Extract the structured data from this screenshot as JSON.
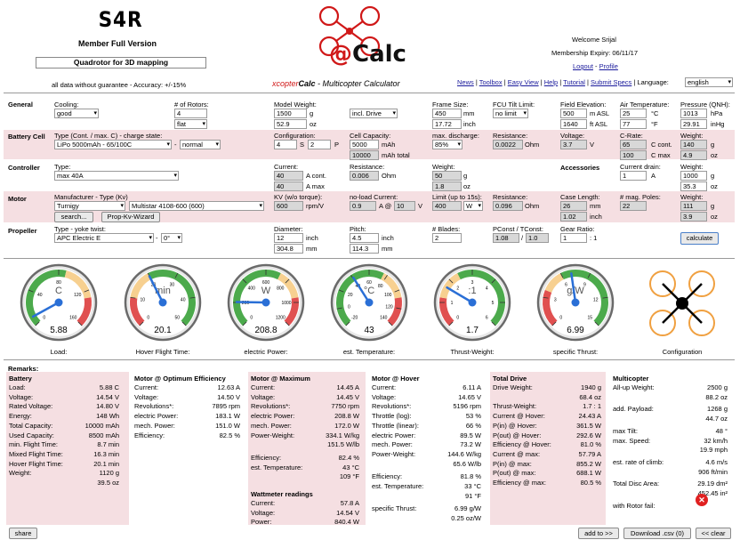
{
  "header": {
    "logo_text": "S4R",
    "member_label": "Member Full Version",
    "project_name": "Quadrotor for 3D mapping",
    "disclaimer": "all data without guarantee - Accuracy: +/-15%",
    "brand_prefix": "xcopter",
    "brand_name": "Calc",
    "brand_tagline": " - Multicopter Calculator",
    "welcome": "Welcome Srijal",
    "expiry": "Membership Expiry: 06/11/17",
    "logout": "Logout",
    "separator": " - ",
    "profile": "Profile",
    "nav": [
      "News",
      "Toolbox",
      "Easy View",
      "Help",
      "Tutorial",
      "Submit Specs"
    ],
    "language_label": "Language:",
    "language_value": "english"
  },
  "general": {
    "title": "General",
    "cooling_label": "Cooling:",
    "cooling": "good",
    "rotors_label": "# of Rotors:",
    "rotors": "4",
    "frame_type": "flat",
    "weight_label": "Model Weight:",
    "weight_g": "1500",
    "weight_g_unit": "g",
    "weight_oz": "52.9",
    "weight_oz_unit": "oz",
    "drive_select": "incl. Drive",
    "frame_label": "Frame Size:",
    "frame_mm": "450",
    "frame_mm_unit": "mm",
    "frame_inch": "17.72",
    "frame_inch_unit": "inch",
    "tilt_label": "FCU Tilt Limit:",
    "tilt": "no limit",
    "elev_label": "Field Elevation:",
    "elev_m": "500",
    "elev_m_unit": "m ASL",
    "elev_ft": "1640",
    "elev_ft_unit": "ft ASL",
    "airtemp_label": "Air Temperature:",
    "temp_c": "25",
    "temp_c_unit": "°C",
    "temp_f": "77",
    "temp_f_unit": "°F",
    "press_label": "Pressure (QNH):",
    "press_hpa": "1013",
    "press_hpa_unit": "hPa",
    "press_inhg": "29.91",
    "press_inhg_unit": "inHg"
  },
  "battery": {
    "title": "Battery Cell",
    "type_label": "Type (Cont. / max. C) - charge state:",
    "type": "LiPo 5000mAh - 65/100C",
    "dash": "-",
    "state": "normal",
    "config_label": "Configuration:",
    "s": "4",
    "s_unit": "S",
    "p": "2",
    "p_unit": "P",
    "cap_label": "Cell Capacity:",
    "cap": "5000",
    "cap_unit": "mAh",
    "cap_total": "10000",
    "cap_total_unit": "mAh total",
    "disch_label": "max. discharge:",
    "disch": "85%",
    "res_label": "Resistance:",
    "res": "0.0022",
    "res_unit": "Ohm",
    "volt_label": "Voltage:",
    "volt": "3.7",
    "volt_unit": "V",
    "crate_label": "C-Rate:",
    "c_cont": "65",
    "c_cont_unit": "C cont.",
    "c_max": "100",
    "c_max_unit": "C max",
    "w_label": "Weight:",
    "w_g": "140",
    "w_g_unit": "g",
    "w_oz": "4.9",
    "w_oz_unit": "oz"
  },
  "controller": {
    "title": "Controller",
    "type_label": "Type:",
    "type": "max 40A",
    "current_label": "Current:",
    "cur_cont": "40",
    "cur_cont_unit": "A cont.",
    "cur_max": "40",
    "cur_max_unit": "A max",
    "res_label": "Resistance:",
    "res": "0.006",
    "res_unit": "Ohm",
    "w_label": "Weight:",
    "w_g": "50",
    "w_g_unit": "g",
    "w_oz": "1.8",
    "w_oz_unit": "oz",
    "acc_title": "Accessories",
    "drain_label": "Current drain:",
    "drain": "1",
    "drain_unit": "A",
    "acc_w_label": "Weight:",
    "acc_w_g": "1000",
    "acc_w_g_unit": "g",
    "acc_w_oz": "35.3",
    "acc_w_oz_unit": "oz"
  },
  "motor": {
    "title": "Motor",
    "mfr_label": "Manufacturer - Type (Kv)",
    "mfr": "Turnigy",
    "model": "Multistar 4108-600 (600)",
    "search_btn": "search...",
    "prop_kv_btn": "Prop-Kv-Wizard",
    "kv_label": "KV (w/o torque):",
    "kv": "600",
    "kv_unit": "rpm/V",
    "noload_label": "no-load Current:",
    "noload_a": "0.9",
    "noload_at": "A @",
    "noload_v": "10",
    "noload_v_unit": "V",
    "limit_label": "Limit (up to 15s):",
    "limit": "400",
    "limit_unit": "W",
    "res_label": "Resistance:",
    "res": "0.096",
    "res_unit": "Ohm",
    "case_label": "Case Length:",
    "case_mm": "26",
    "case_mm_unit": "mm",
    "case_inch": "1.02",
    "case_inch_unit": "inch",
    "poles_label": "# mag. Poles:",
    "poles": "22",
    "w_label": "Weight:",
    "w_g": "111",
    "w_g_unit": "g",
    "w_oz": "3.9",
    "w_oz_unit": "oz"
  },
  "propeller": {
    "title": "Propeller",
    "type_label": "Type - yoke twist:",
    "type": "APC Electric E",
    "dash": "-",
    "twist": "0°",
    "dia_label": "Diameter:",
    "dia_inch": "12",
    "dia_inch_unit": "inch",
    "dia_mm": "304.8",
    "dia_mm_unit": "mm",
    "pitch_label": "Pitch:",
    "pitch_inch": "4.5",
    "pitch_inch_unit": "inch",
    "pitch_mm": "114.3",
    "pitch_mm_unit": "mm",
    "blades_label": "# Blades:",
    "blades": "2",
    "pconst_label": "PConst / TConst:",
    "pconst": "1.08",
    "slash": "/",
    "tconst": "1.0",
    "gear_label": "Gear Ratio:",
    "gear": "1",
    "gear_sep": ": 1",
    "calc_btn": "calculate"
  },
  "gauges": [
    {
      "unit": "C",
      "value": "5.88",
      "caption": "Load:",
      "ticks": [
        "0",
        "40",
        "80",
        "120",
        "160"
      ],
      "needle": 0.06
    },
    {
      "unit": "min",
      "value": "20.1",
      "caption": "Hover Flight Time:",
      "ticks": [
        "0",
        "10",
        "20",
        "30",
        "40",
        "50"
      ],
      "needle": 0.4
    },
    {
      "unit": "W",
      "value": "208.8",
      "caption": "electric Power:",
      "ticks": [
        "0",
        "200",
        "400",
        "600",
        "800",
        "1000",
        "1200"
      ],
      "needle": 0.17
    },
    {
      "unit": "°C",
      "value": "43",
      "caption": "est. Temperature:",
      "ticks": [
        "-20",
        "0",
        "20",
        "40",
        "60",
        "80",
        "100",
        "120",
        "140"
      ],
      "needle": 0.38
    },
    {
      "unit": ":1",
      "value": "1.7",
      "caption": "Thrust-Weight:",
      "ticks": [
        "0",
        "1",
        "2",
        "3",
        "4",
        "5",
        "6"
      ],
      "needle": 0.28
    },
    {
      "unit": "g/W",
      "value": "6.99",
      "caption": "specific Thrust:",
      "ticks": [
        "0",
        "3",
        "6",
        "9",
        "12",
        "15"
      ],
      "needle": 0.47
    }
  ],
  "config_caption": "Configuration",
  "remarks_label": "Remarks:",
  "results": {
    "battery": {
      "title": "Battery",
      "rows": [
        [
          "Load:",
          "5.88 C"
        ],
        [
          "Voltage:",
          "14.54 V"
        ],
        [
          "Rated Voltage:",
          "14.80 V"
        ],
        [
          "Energy:",
          "148 Wh"
        ],
        [
          "Total Capacity:",
          "10000 mAh"
        ],
        [
          "Used Capacity:",
          "8500 mAh"
        ],
        [
          "min. Flight Time:",
          "8.7 min"
        ],
        [
          "Mixed Flight Time:",
          "16.3 min"
        ],
        [
          "Hover Flight Time:",
          "20.1 min"
        ],
        [
          "Weight:",
          "1120 g"
        ],
        [
          "",
          "39.5 oz"
        ]
      ]
    },
    "motor_opt": {
      "title": "Motor @ Optimum Efficiency",
      "rows": [
        [
          "Current:",
          "12.63 A"
        ],
        [
          "Voltage:",
          "14.50 V"
        ],
        [
          "Revolutions*:",
          "7895 rpm"
        ],
        [
          "electric Power:",
          "183.1 W"
        ],
        [
          "mech. Power:",
          "151.0 W"
        ],
        [
          "Efficiency:",
          "82.5 %"
        ]
      ]
    },
    "motor_max": {
      "title": "Motor @ Maximum",
      "rows": [
        [
          "Current:",
          "14.45 A"
        ],
        [
          "Voltage:",
          "14.45 V"
        ],
        [
          "Revolutions*:",
          "7750 rpm"
        ],
        [
          "electric Power:",
          "208.8 W"
        ],
        [
          "mech. Power:",
          "172.0 W"
        ],
        [
          "Power-Weight:",
          "334.1 W/kg"
        ],
        [
          "",
          "151.5 W/lb"
        ],
        [
          "Efficiency:",
          "82.4 %"
        ],
        [
          "est. Temperature:",
          "43 °C"
        ],
        [
          "",
          "109 °F"
        ]
      ]
    },
    "wattmeter": {
      "title": "Wattmeter readings",
      "rows": [
        [
          "Current:",
          "57.8 A"
        ],
        [
          "Voltage:",
          "14.54 V"
        ],
        [
          "Power:",
          "840.4 W"
        ]
      ]
    },
    "motor_hover": {
      "title": "Motor @ Hover",
      "rows": [
        [
          "Current:",
          "6.11 A"
        ],
        [
          "Voltage:",
          "14.65 V"
        ],
        [
          "Revolutions*:",
          "5196 rpm"
        ],
        [
          "Throttle (log):",
          "53 %"
        ],
        [
          "Throttle (linear):",
          "66 %"
        ],
        [
          "electric Power:",
          "89.5 W"
        ],
        [
          "mech. Power:",
          "73.2 W"
        ],
        [
          "Power-Weight:",
          "144.6 W/kg"
        ],
        [
          "",
          "65.6 W/lb"
        ],
        [
          "Efficiency:",
          "81.8 %"
        ],
        [
          "est. Temperature:",
          "33 °C"
        ],
        [
          "",
          "91 °F"
        ],
        [
          "specific Thrust:",
          "6.99 g/W"
        ],
        [
          "",
          "0.25 oz/W"
        ]
      ]
    },
    "total_drive": {
      "title": "Total Drive",
      "rows": [
        [
          "Drive Weight:",
          "1940 g"
        ],
        [
          "",
          "68.4 oz"
        ],
        [
          "Thrust-Weight:",
          "1.7 : 1"
        ],
        [
          "Current @ Hover:",
          "24.43 A"
        ],
        [
          "P(in) @ Hover:",
          "361.5 W"
        ],
        [
          "P(out) @ Hover:",
          "292.6 W"
        ],
        [
          "Efficiency @ Hover:",
          "81.0 %"
        ],
        [
          "Current @ max:",
          "57.79 A"
        ],
        [
          "P(in) @ max:",
          "855.2 W"
        ],
        [
          "P(out) @ max:",
          "688.1 W"
        ],
        [
          "Efficiency @ max:",
          "80.5 %"
        ]
      ]
    },
    "multicopter": {
      "title": "Multicopter",
      "rows": [
        [
          "All-up Weight:",
          "2500 g"
        ],
        [
          "",
          "88.2 oz"
        ],
        [
          "add. Payload:",
          "1268 g"
        ],
        [
          "",
          "44.7 oz"
        ],
        [
          "max Tilt:",
          "48 °"
        ],
        [
          "max. Speed:",
          "32 km/h"
        ],
        [
          "",
          "19.9 mph"
        ],
        [
          "est. rate of climb:",
          "4.6 m/s"
        ],
        [
          "",
          "906 ft/min"
        ],
        [
          "Total Disc Area:",
          "29.19 dm²"
        ],
        [
          "",
          "452.45 in²"
        ],
        [
          "with Rotor fail:",
          ""
        ]
      ]
    }
  },
  "footer": {
    "share": "share",
    "add_to": "add to >>",
    "download": "Download .csv (0)",
    "clear": "<< clear"
  }
}
